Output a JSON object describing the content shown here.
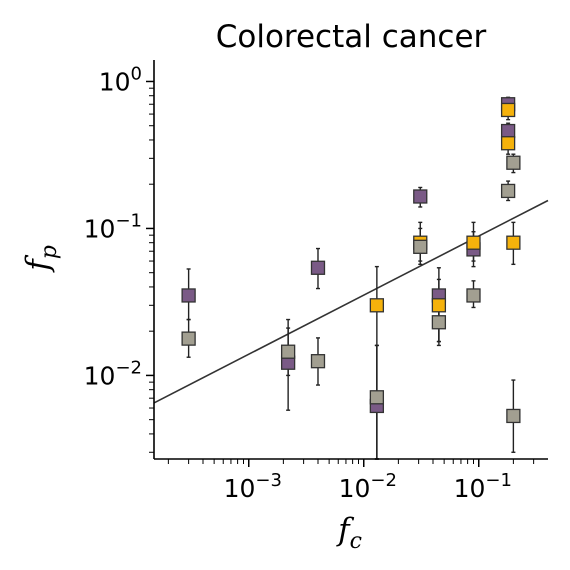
{
  "chart_data": {
    "type": "scatter",
    "title": "Colorectal cancer",
    "xlabel": {
      "base": "f",
      "sub": "c"
    },
    "ylabel": {
      "base": "f",
      "sub": "p"
    },
    "xscale": "log",
    "yscale": "log",
    "xlim": [
      0.00015,
      0.4
    ],
    "ylim": [
      0.0027,
      1.4
    ],
    "x_ticks": [
      {
        "value": 0.001,
        "base": "10",
        "exp": "−3"
      },
      {
        "value": 0.01,
        "base": "10",
        "exp": "−2"
      },
      {
        "value": 0.1,
        "base": "10",
        "exp": "−1"
      }
    ],
    "y_ticks": [
      {
        "value": 0.01,
        "base": "10",
        "exp": "−2"
      },
      {
        "value": 0.1,
        "base": "10",
        "exp": "−1"
      },
      {
        "value": 1,
        "base": "10",
        "exp": "0"
      }
    ],
    "grid": false,
    "legend": "none",
    "fit_line": {
      "x": [
        0.00015,
        0.4
      ],
      "y": [
        0.0065,
        0.155
      ],
      "color": "#333333"
    },
    "series": [
      {
        "color": "#7a5a86",
        "points": [
          {
            "x": 0.0003,
            "y": 0.035,
            "ylow": 0.024,
            "yhigh": 0.053
          },
          {
            "x": 0.0022,
            "y": 0.0122,
            "ylow": 0.0058,
            "yhigh": 0.021
          },
          {
            "x": 0.004,
            "y": 0.054,
            "ylow": 0.039,
            "yhigh": 0.073
          },
          {
            "x": 0.013,
            "y": 0.0062,
            "ylow": 0.0027,
            "yhigh": 0.016
          },
          {
            "x": 0.031,
            "y": 0.165,
            "ylow": 0.14,
            "yhigh": 0.19
          },
          {
            "x": 0.045,
            "y": 0.035,
            "ylow": 0.017,
            "yhigh": 0.054
          },
          {
            "x": 0.09,
            "y": 0.072,
            "ylow": 0.055,
            "yhigh": 0.095
          },
          {
            "x": 0.18,
            "y": 0.7,
            "ylow": 0.62,
            "yhigh": 0.78
          },
          {
            "x": 0.18,
            "y": 0.46,
            "ylow": 0.4,
            "yhigh": 0.52
          }
        ]
      },
      {
        "color": "#f5b20c",
        "points": [
          {
            "x": 0.013,
            "y": 0.03,
            "ylow": 0.0027,
            "yhigh": 0.055
          },
          {
            "x": 0.031,
            "y": 0.08,
            "ylow": 0.06,
            "yhigh": 0.11
          },
          {
            "x": 0.045,
            "y": 0.03,
            "ylow": 0.017,
            "yhigh": 0.045
          },
          {
            "x": 0.09,
            "y": 0.08,
            "ylow": 0.06,
            "yhigh": 0.11
          },
          {
            "x": 0.18,
            "y": 0.64,
            "ylow": 0.55,
            "yhigh": 0.74
          },
          {
            "x": 0.18,
            "y": 0.38,
            "ylow": 0.32,
            "yhigh": 0.44
          },
          {
            "x": 0.2,
            "y": 0.08,
            "ylow": 0.057,
            "yhigh": 0.11
          }
        ]
      },
      {
        "color": "#a29f91",
        "points": [
          {
            "x": 0.0003,
            "y": 0.0178,
            "ylow": 0.0133,
            "yhigh": 0.024
          },
          {
            "x": 0.0022,
            "y": 0.0145,
            "ylow": 0.01,
            "yhigh": 0.024
          },
          {
            "x": 0.004,
            "y": 0.0125,
            "ylow": 0.0086,
            "yhigh": 0.018
          },
          {
            "x": 0.013,
            "y": 0.0071,
            "ylow": 0.0027,
            "yhigh": 0.016
          },
          {
            "x": 0.031,
            "y": 0.075,
            "ylow": 0.057,
            "yhigh": 0.1
          },
          {
            "x": 0.045,
            "y": 0.023,
            "ylow": 0.016,
            "yhigh": 0.032
          },
          {
            "x": 0.09,
            "y": 0.035,
            "ylow": 0.029,
            "yhigh": 0.044
          },
          {
            "x": 0.2,
            "y": 0.28,
            "ylow": 0.24,
            "yhigh": 0.32
          },
          {
            "x": 0.18,
            "y": 0.18,
            "ylow": 0.155,
            "yhigh": 0.21
          },
          {
            "x": 0.2,
            "y": 0.0053,
            "ylow": 0.003,
            "yhigh": 0.0093
          }
        ]
      }
    ]
  }
}
